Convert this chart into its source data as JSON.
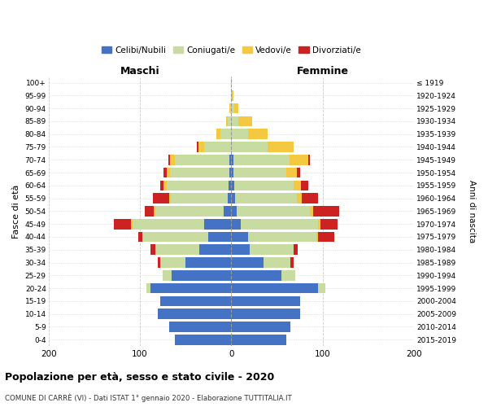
{
  "age_groups": [
    "0-4",
    "5-9",
    "10-14",
    "15-19",
    "20-24",
    "25-29",
    "30-34",
    "35-39",
    "40-44",
    "45-49",
    "50-54",
    "55-59",
    "60-64",
    "65-69",
    "70-74",
    "75-79",
    "80-84",
    "85-89",
    "90-94",
    "95-99",
    "100+"
  ],
  "birth_years": [
    "2015-2019",
    "2010-2014",
    "2005-2009",
    "2000-2004",
    "1995-1999",
    "1990-1994",
    "1985-1989",
    "1980-1984",
    "1975-1979",
    "1970-1974",
    "1965-1969",
    "1960-1964",
    "1955-1959",
    "1950-1954",
    "1945-1949",
    "1940-1944",
    "1935-1939",
    "1930-1934",
    "1925-1929",
    "1920-1924",
    "≤ 1919"
  ],
  "males": {
    "celibi": [
      62,
      68,
      80,
      78,
      88,
      65,
      50,
      35,
      25,
      30,
      8,
      4,
      3,
      2,
      2,
      0,
      0,
      0,
      0,
      0,
      0
    ],
    "coniugati": [
      0,
      0,
      0,
      0,
      5,
      10,
      28,
      48,
      72,
      78,
      75,
      62,
      68,
      65,
      60,
      30,
      12,
      4,
      1,
      0,
      0
    ],
    "vedovi": [
      0,
      0,
      0,
      0,
      0,
      0,
      0,
      0,
      0,
      2,
      2,
      2,
      3,
      4,
      5,
      6,
      4,
      2,
      1,
      0,
      0
    ],
    "divorziati": [
      0,
      0,
      0,
      0,
      0,
      0,
      2,
      5,
      5,
      18,
      10,
      18,
      4,
      3,
      2,
      2,
      0,
      0,
      0,
      0,
      0
    ]
  },
  "females": {
    "nubili": [
      60,
      65,
      75,
      75,
      95,
      55,
      35,
      20,
      18,
      10,
      6,
      4,
      3,
      2,
      2,
      0,
      0,
      0,
      0,
      0,
      0
    ],
    "coniugate": [
      0,
      0,
      0,
      0,
      8,
      15,
      30,
      48,
      75,
      85,
      80,
      68,
      65,
      58,
      62,
      40,
      18,
      8,
      3,
      1,
      0
    ],
    "vedove": [
      0,
      0,
      0,
      0,
      0,
      0,
      0,
      0,
      2,
      3,
      4,
      5,
      8,
      12,
      20,
      28,
      22,
      15,
      5,
      1,
      0
    ],
    "divorziate": [
      0,
      0,
      0,
      0,
      0,
      0,
      3,
      5,
      18,
      18,
      28,
      18,
      8,
      3,
      2,
      0,
      0,
      0,
      0,
      0,
      0
    ]
  },
  "colors": {
    "celibi_nubili": "#4472c4",
    "coniugati_e": "#c8dba0",
    "vedovi_e": "#f5c842",
    "divorziati_e": "#cc2222"
  },
  "xlim": 200,
  "title": "Popolazione per età, sesso e stato civile - 2020",
  "subtitle": "COMUNE DI CARRÈ (VI) - Dati ISTAT 1° gennaio 2020 - Elaborazione TUTTITALIA.IT",
  "ylabel_left": "Fasce di età",
  "ylabel_right": "Anni di nascita",
  "legend_labels": [
    "Celibi/Nubili",
    "Coniugati/e",
    "Vedovi/e",
    "Divorziati/e"
  ],
  "maschi_label": "Maschi",
  "femmine_label": "Femmine",
  "background_color": "#ffffff",
  "grid_color": "#cccccc"
}
